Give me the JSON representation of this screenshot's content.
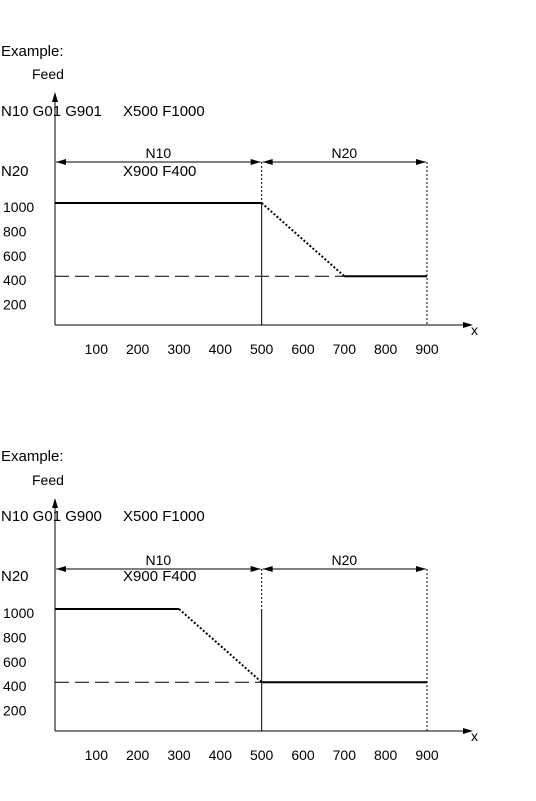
{
  "examples": [
    {
      "caption": "Example:",
      "lines": [
        {
          "block": "N10 G01 G901",
          "rest": "X500 F1000"
        },
        {
          "block": "N20",
          "rest": "X900 F400"
        }
      ]
    },
    {
      "caption": "Example:",
      "lines": [
        {
          "block": "N10 G01 G900",
          "rest": "X500 F1000"
        },
        {
          "block": "N20",
          "rest": "X900 F400"
        }
      ]
    }
  ],
  "chart_data": [
    {
      "type": "line",
      "title": "",
      "ylabel": "Feed",
      "xlabel": "x",
      "x_ticks": [
        100,
        200,
        300,
        400,
        500,
        600,
        700,
        800,
        900
      ],
      "y_ticks": [
        1000,
        800,
        600,
        400,
        200
      ],
      "xlim": [
        0,
        900
      ],
      "ylim": [
        0,
        1000
      ],
      "grid": false,
      "segments": [
        {
          "name": "N10",
          "x_start": 0,
          "x_end": 500
        },
        {
          "name": "N20",
          "x_start": 500,
          "x_end": 900
        }
      ],
      "reference_line": {
        "y": 400,
        "style": "dashed"
      },
      "series": [
        {
          "points": [
            [
              0,
              1000
            ],
            [
              500,
              1000
            ]
          ],
          "style": "solid"
        },
        {
          "points": [
            [
              500,
              1000
            ],
            [
              700,
              400
            ]
          ],
          "style": "dotted"
        },
        {
          "points": [
            [
              700,
              400
            ],
            [
              900,
              400
            ]
          ],
          "style": "solid"
        }
      ]
    },
    {
      "type": "line",
      "title": "",
      "ylabel": "Feed",
      "xlabel": "x",
      "x_ticks": [
        100,
        200,
        300,
        400,
        500,
        600,
        700,
        800,
        900
      ],
      "y_ticks": [
        1000,
        800,
        600,
        400,
        200
      ],
      "xlim": [
        0,
        900
      ],
      "ylim": [
        0,
        1000
      ],
      "grid": false,
      "segments": [
        {
          "name": "N10",
          "x_start": 0,
          "x_end": 500
        },
        {
          "name": "N20",
          "x_start": 500,
          "x_end": 900
        }
      ],
      "reference_line": {
        "y": 400,
        "style": "dashed"
      },
      "series": [
        {
          "points": [
            [
              0,
              1000
            ],
            [
              300,
              1000
            ]
          ],
          "style": "solid"
        },
        {
          "points": [
            [
              300,
              1000
            ],
            [
              500,
              400
            ]
          ],
          "style": "dotted"
        },
        {
          "points": [
            [
              500,
              400
            ],
            [
              900,
              400
            ]
          ],
          "style": "solid"
        }
      ]
    }
  ]
}
